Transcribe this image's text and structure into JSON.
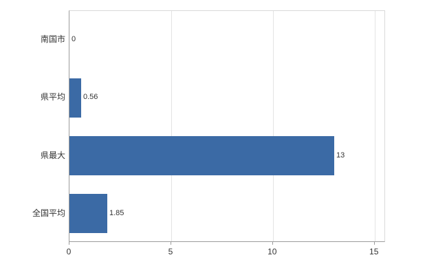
{
  "chart_data": {
    "type": "bar",
    "orientation": "horizontal",
    "title": "",
    "xlabel": "",
    "ylabel": "",
    "categories_top_to_bottom": [
      "南国市",
      "県平均",
      "県最大",
      "全国平均"
    ],
    "values_top_to_bottom": [
      0,
      0.56,
      13,
      1.85
    ],
    "value_labels_top_to_bottom": [
      "0",
      "0.56",
      "13",
      "1.85"
    ],
    "x_ticks": [
      0,
      5,
      10,
      15
    ],
    "x_tick_labels": [
      "0",
      "5",
      "10",
      "15"
    ],
    "xlim": [
      0,
      15.55
    ],
    "grid": "vertical-light",
    "legend": "none",
    "bar_color": "#3b6aa5",
    "gridline_color": "#e3e3e3",
    "axis_color": "#9b9b9b",
    "background_color": "#ffffff"
  }
}
